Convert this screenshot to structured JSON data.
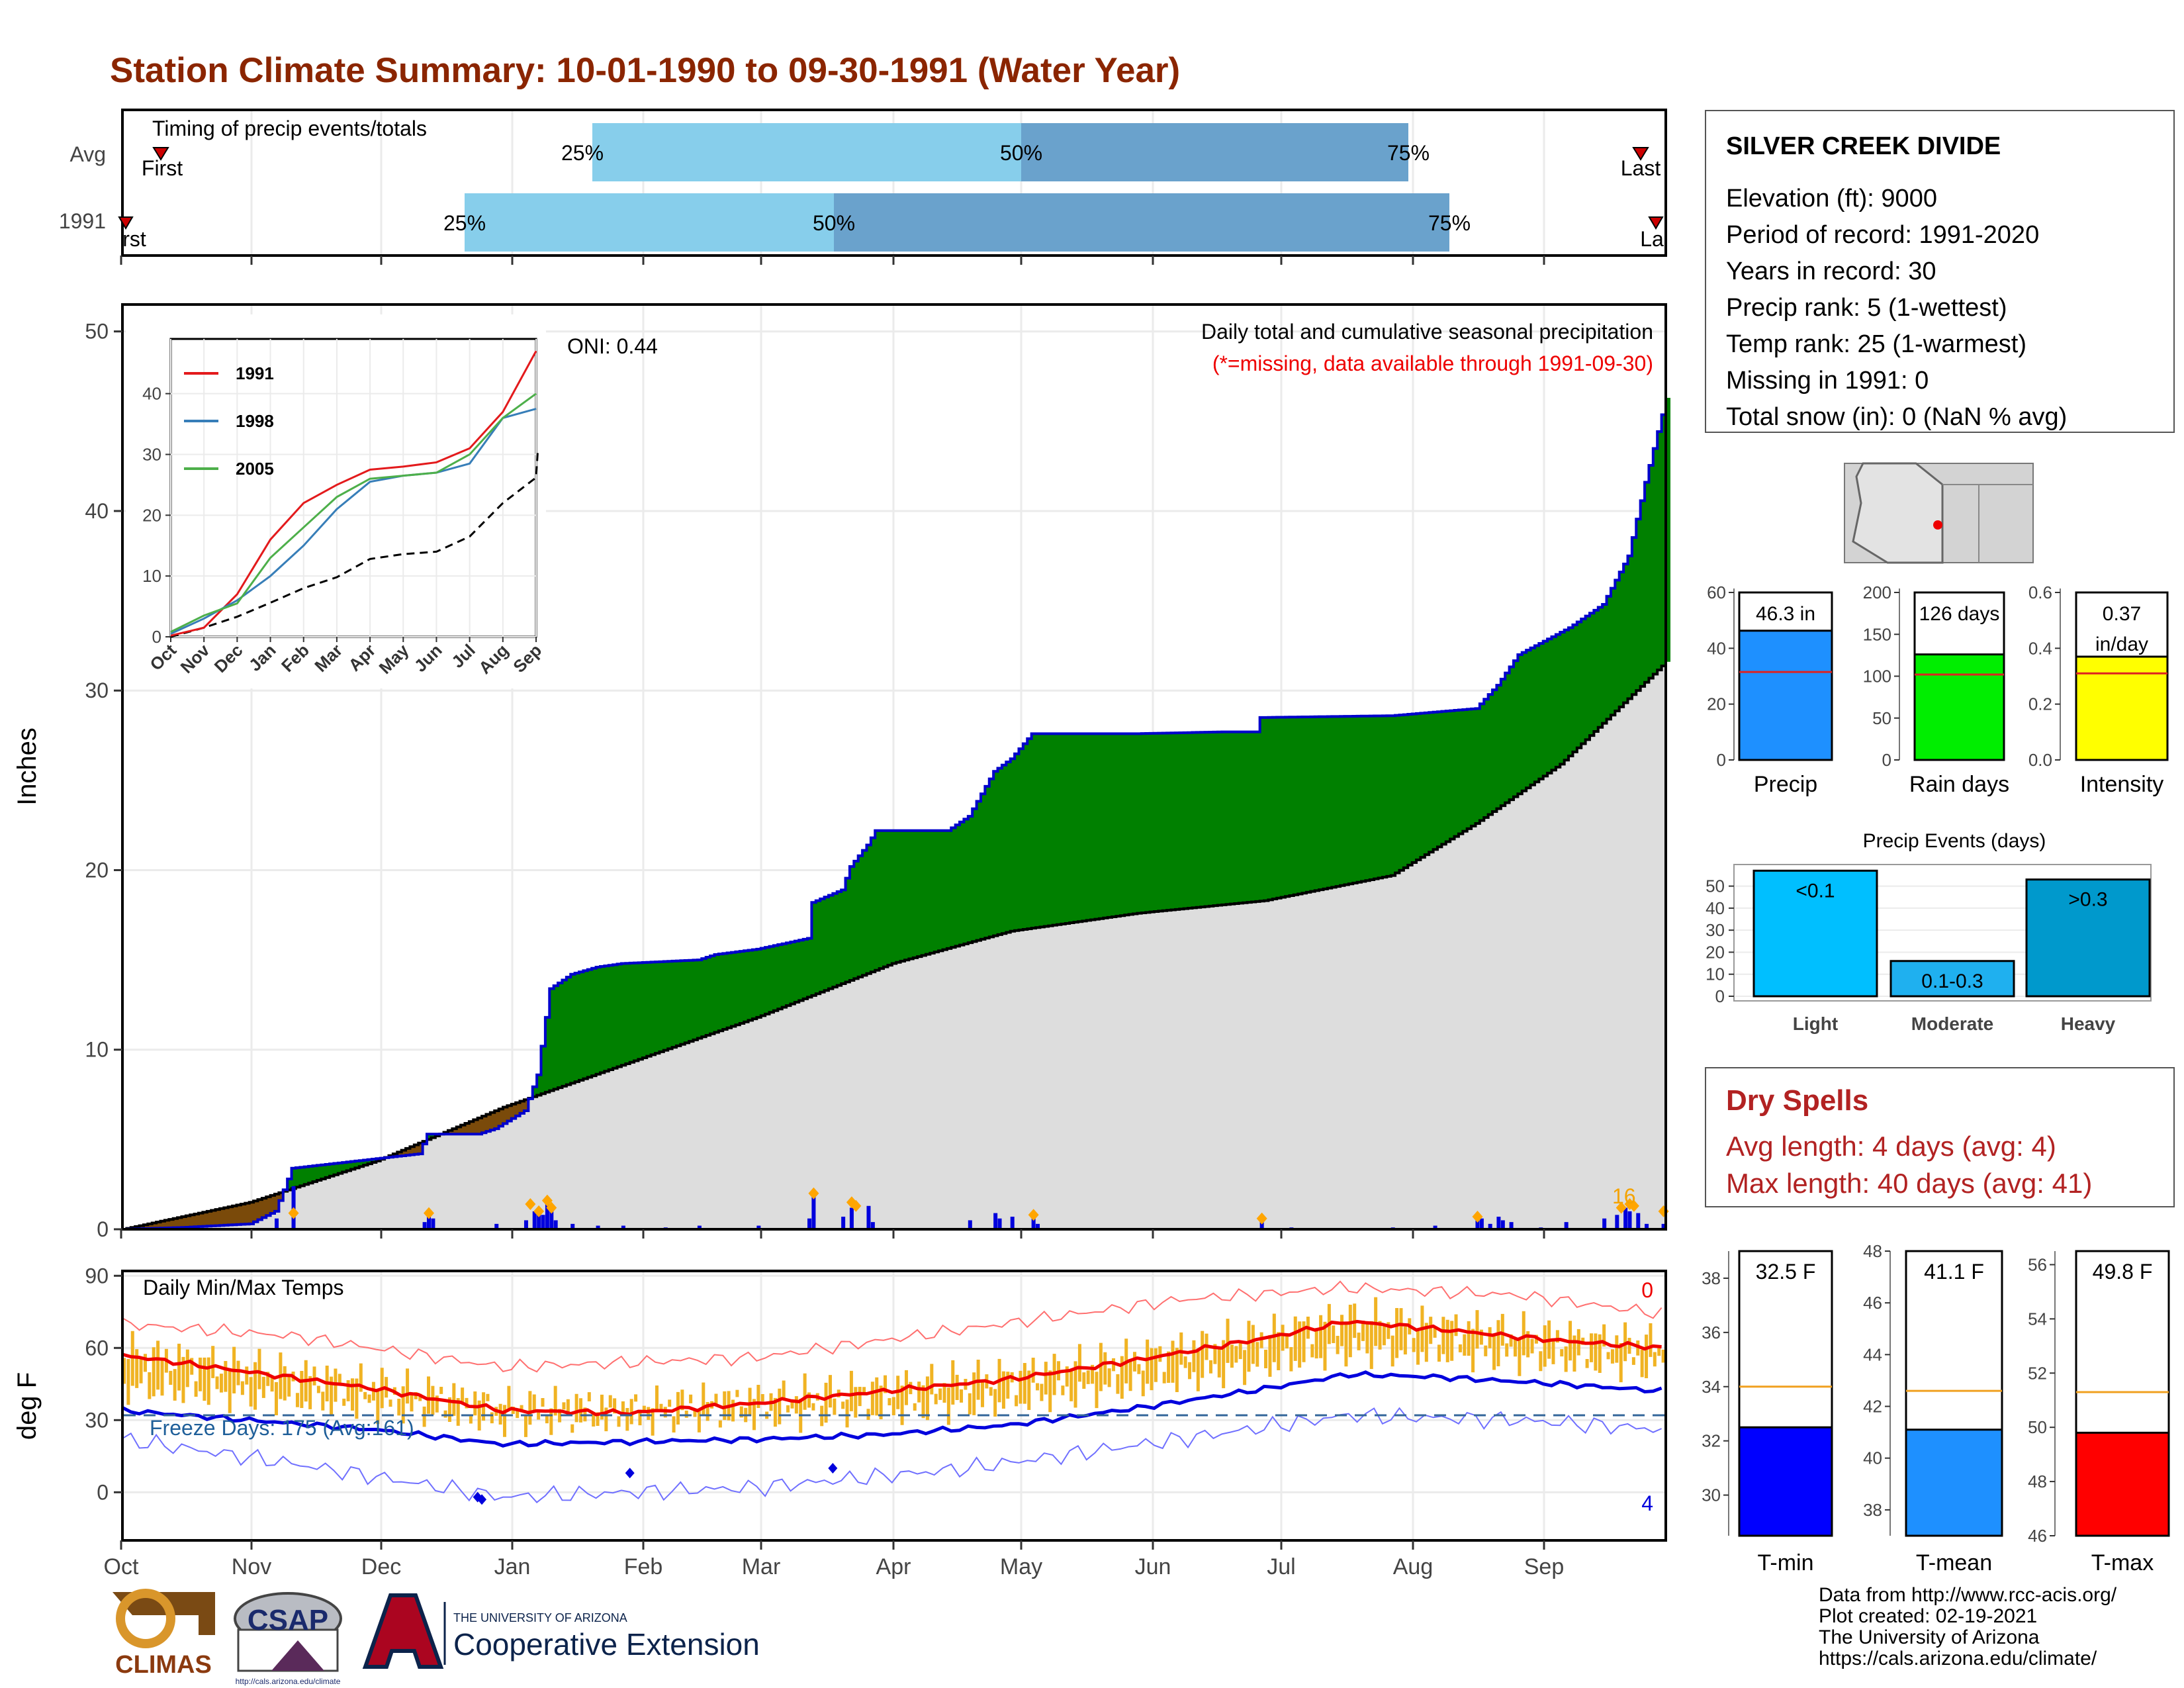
{
  "title": "Station Climate Summary: 10-01-1990 to 09-30-1991 (Water Year)",
  "months": [
    "Oct",
    "Nov",
    "Dec",
    "Jan",
    "Feb",
    "Mar",
    "Apr",
    "May",
    "Jun",
    "Jul",
    "Aug",
    "Sep"
  ],
  "timing_panel": {
    "label": "Timing of precip events/totals",
    "row_labels": [
      "Avg",
      "1991"
    ],
    "first_label": "First",
    "last_label": "Last",
    "pct_labels": [
      "25%",
      "50%",
      "75%"
    ],
    "first_label_1991": "rst",
    "last_label_1991": "La",
    "colors": {
      "light": "#87ceeb",
      "dark": "#6aa2cc",
      "marker": "#cc0000"
    }
  },
  "station": {
    "name": "SILVER CREEK DIVIDE",
    "lines": [
      "Elevation (ft): 9000",
      "Period of record: 1991-2020",
      "Years in record: 30",
      "Precip rank: 5 (1-wettest)",
      "Temp rank: 25 (1-warmest)",
      "Missing in 1991: 0",
      "Total snow (in): 0 (NaN % avg)"
    ]
  },
  "precip_panel": {
    "ylabel": "Inches",
    "note1": "Daily total and cumulative seasonal precipitation",
    "note2": "(*=missing, data available through 1991-09-30)",
    "oni": "ONI: 0.44",
    "count_label": "16",
    "colors": {
      "surplus": "#008000",
      "deficit": "#7a4a0a",
      "avg_fill": "#dddddd",
      "line": "#0000cc",
      "daily_bar": "#0000dd",
      "extreme": "#ffa500"
    }
  },
  "inset": {
    "legend": [
      "1991",
      "1998",
      "2005"
    ],
    "colors": [
      "#e31a1c",
      "#377eb8",
      "#4daf4a"
    ],
    "ylim": [
      0,
      50
    ],
    "yticks": [
      0,
      10,
      20,
      30,
      40
    ]
  },
  "temp_panel": {
    "ylabel": "deg F",
    "label": "Daily Min/Max Temps",
    "freeze": "Freeze Days: 175 (Avg:161)",
    "top_count": "0",
    "bottom_count": "4",
    "ylim": [
      -20,
      92
    ],
    "yticks": [
      0,
      30,
      60,
      90
    ],
    "colors": {
      "bar": "#f0b323",
      "max_line": "#ee0000",
      "min_line": "#0000dd",
      "freeze_line": "#336699"
    }
  },
  "summary_bars": {
    "precip": {
      "label": "Precip",
      "value_text": "46.3 in",
      "value": 46.3,
      "avg": 31.5,
      "max": 60,
      "ticks": [
        0,
        20,
        40,
        60
      ],
      "color": "#1e90ff"
    },
    "rain_days": {
      "label": "Rain days",
      "value_text": "126 days",
      "value": 126,
      "avg": 102,
      "max": 200,
      "ticks": [
        0,
        50,
        100,
        150,
        200
      ],
      "color": "#00ee00"
    },
    "intensity": {
      "label": "Intensity",
      "value_text": "0.37",
      "value_text2": "in/day",
      "value": 0.37,
      "avg": 0.31,
      "max": 0.6,
      "ticks": [
        0.0,
        0.2,
        0.4,
        0.6
      ],
      "color": "#ffff00"
    }
  },
  "precip_events": {
    "title": "Precip Events (days)",
    "categories": [
      "Light",
      "Moderate",
      "Heavy"
    ],
    "bar_labels": [
      "<0.1",
      "0.1-0.3",
      ">0.3"
    ],
    "values": [
      57,
      16,
      53
    ],
    "yticks": [
      0,
      10,
      20,
      30,
      40,
      50
    ],
    "colors": [
      "#00bfff",
      "#1fb0ef",
      "#0099cc"
    ]
  },
  "dry_spells": {
    "title": "Dry Spells",
    "avg": "Avg length: 4 days (avg: 4)",
    "max": "Max length: 40 days (avg: 41)"
  },
  "temp_bars": {
    "tmin": {
      "label": "T-min",
      "value_text": "32.5 F",
      "value": 32.5,
      "avg": 34.0,
      "min": 28.5,
      "max": 39.0,
      "ticks": [
        30,
        32,
        34,
        36,
        38
      ],
      "color": "#0000ff"
    },
    "tmean": {
      "label": "T-mean",
      "value_text": "41.1 F",
      "value": 41.1,
      "avg": 42.6,
      "min": 37.0,
      "max": 48.0,
      "ticks": [
        38,
        40,
        42,
        44,
        46,
        48
      ],
      "color": "#1e90ff"
    },
    "tmax": {
      "label": "T-max",
      "value_text": "49.8 F",
      "value": 49.8,
      "avg": 51.3,
      "min": 46.0,
      "max": 56.5,
      "ticks": [
        46,
        48,
        50,
        52,
        54,
        56
      ],
      "color": "#ff0000"
    }
  },
  "footer": {
    "lines": [
      "Data from http://www.rcc-acis.org/",
      "Plot created: 02-19-2021",
      "The University of Arizona",
      "https://cals.arizona.edu/climate/"
    ],
    "climas": "CLIMAS",
    "csap": "CSAP",
    "csap_url": "http://cals.arizona.edu/climate",
    "ua_small": "THE UNIVERSITY OF ARIZONA",
    "ua_big": "Cooperative Extension"
  },
  "chart_data": [
    {
      "type": "area",
      "title": "Daily total and cumulative seasonal precipitation",
      "ylabel": "Inches",
      "ylim": [
        0,
        50
      ],
      "x": [
        "Oct",
        "Nov",
        "Dec",
        "Jan",
        "Feb",
        "Mar",
        "Apr",
        "May",
        "Jun",
        "Jul",
        "Aug",
        "Sep"
      ],
      "series": [
        {
          "name": "1991",
          "values": [
            0.0,
            3.4,
            5.2,
            14.8,
            15.6,
            22.0,
            27.6,
            27.7,
            28.5,
            28.6,
            34.5,
            43.4
          ]
        },
        {
          "name": "",
          "values": [
            0.2,
            2.5,
            5.0,
            8.6,
            11.5,
            14.5,
            16.6,
            17.5,
            18.2,
            19.3,
            24.0,
            28.8
          ]
        }
      ]
    },
    {
      "type": "line",
      "title": "Daily Min/Max Temps",
      "ylabel": "deg F",
      "ylim": [
        -20,
        92
      ],
      "x": [
        "Oct",
        "Nov",
        "Dec",
        "Jan",
        "Feb",
        "Mar",
        "Apr",
        "May",
        "Jun",
        "Jul",
        "Aug",
        "Sep"
      ],
      "series": [
        {
          "name": "",
          "values": [
            57,
            47,
            38,
            33,
            36,
            40,
            45,
            53,
            62,
            71,
            66,
            62
          ]
        },
        {
          "name": "",
          "values": [
            34,
            29,
            23,
            20,
            21,
            24,
            27,
            32,
            41,
            50,
            48,
            45
          ]
        }
      ]
    },
    {
      "type": "line",
      "title": "",
      "ylim": [
        0,
        50
      ],
      "x": [
        "Oct",
        "Nov",
        "Dec",
        "Jan",
        "Feb",
        "Mar",
        "Apr",
        "May",
        "Jun",
        "Jul",
        "Aug",
        "Sep"
      ],
      "series": [
        {
          "name": "1991",
          "values": [
            0.2,
            1.5,
            7.0,
            16.0,
            22.0,
            25.0,
            27.5,
            28.0,
            28.7,
            31.0,
            37.0,
            47.0
          ]
        },
        {
          "name": "1998",
          "values": [
            0.5,
            3.0,
            6.0,
            10.0,
            15.0,
            21.0,
            25.5,
            26.5,
            27.0,
            28.5,
            36.0,
            37.5
          ]
        },
        {
          "name": "2005",
          "values": [
            0.8,
            3.5,
            5.5,
            13.0,
            18.0,
            23.0,
            26.0,
            26.5,
            27.0,
            30.0,
            36.0,
            40.0
          ]
        }
      ]
    },
    {
      "type": "bar",
      "title": "Precip Events (days)",
      "categories": [
        "Light",
        "Moderate",
        "Heavy"
      ],
      "values": [
        57,
        16,
        53
      ],
      "ylim": [
        0,
        55
      ]
    }
  ]
}
